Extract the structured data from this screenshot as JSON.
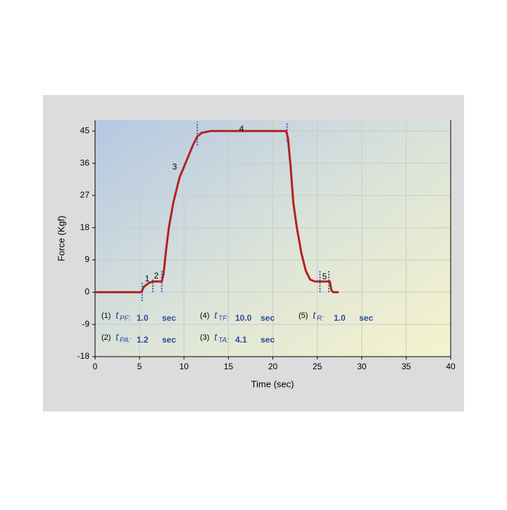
{
  "chart_data": {
    "type": "line",
    "xlabel": "Time (sec)",
    "ylabel": "Force (Kgf)",
    "xlim": [
      0,
      40
    ],
    "xticks": [
      0,
      5,
      10,
      15,
      20,
      25,
      30,
      35,
      40
    ],
    "ylim": [
      -18,
      48
    ],
    "yticks": [
      -18,
      -9,
      0,
      9,
      18,
      27,
      36,
      45
    ],
    "grid": true,
    "series": [
      {
        "color": "#b22222",
        "x": [
          0,
          5.2,
          5.5,
          6,
          6.5,
          7.5,
          7.7,
          8,
          8.3,
          8.8,
          9.5,
          10,
          10.5,
          11,
          11.5,
          12,
          13,
          21.5,
          21.7,
          22,
          22.3,
          22.7,
          23.2,
          23.7,
          24.2,
          24.7,
          26.4,
          26.6,
          26.8,
          27.4
        ],
        "values": [
          0,
          0,
          1.5,
          2.5,
          3,
          3,
          5,
          12,
          18,
          25,
          32,
          35,
          38,
          41,
          43.5,
          44.5,
          45,
          45,
          43,
          35,
          25,
          18,
          11,
          6,
          3.5,
          3,
          3,
          0.5,
          0,
          0
        ]
      }
    ],
    "phase_labels": [
      "1",
      "2",
      "3",
      "4",
      "5"
    ],
    "annotations": [
      {
        "index": "(1)",
        "symbol": "t",
        "sub": "PF:",
        "value": "1.0",
        "unit": "sec"
      },
      {
        "index": "(2)",
        "symbol": "t",
        "sub": "PA:",
        "value": "1.2",
        "unit": "sec"
      },
      {
        "index": "(4)",
        "symbol": "t",
        "sub": "TF:",
        "value": "10.0",
        "unit": "sec"
      },
      {
        "index": "(3)",
        "symbol": "t",
        "sub": "TA:",
        "value": "4.1",
        "unit": "sec"
      },
      {
        "index": "(5)",
        "symbol": "t",
        "sub": "R:",
        "value": "1.0",
        "unit": "sec"
      }
    ]
  }
}
